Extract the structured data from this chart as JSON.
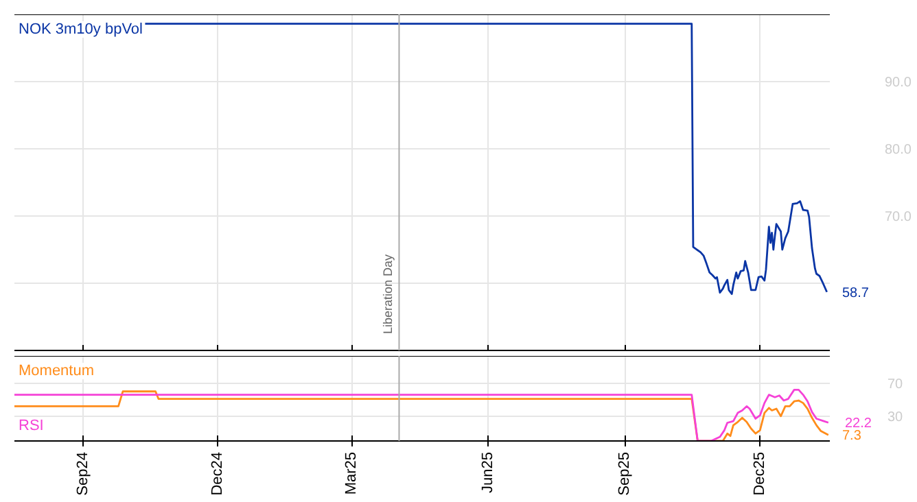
{
  "chart_data": [
    {
      "type": "line",
      "xlim": [
        "2024-07-17",
        "2026-01-17"
      ],
      "ylim": [
        50,
        100
      ],
      "xticks": [
        {
          "value": "2024-09-01",
          "label": null
        },
        {
          "value": "2024-12-01",
          "label": null
        },
        {
          "value": "2025-03-01",
          "label": null
        },
        {
          "value": "2025-06-01",
          "label": null
        },
        {
          "value": "2025-09-01",
          "label": null
        },
        {
          "value": "2025-12-01",
          "label": null
        }
      ],
      "yticks": [
        {
          "value": 60,
          "label": null
        },
        {
          "value": 70,
          "label": "70.0"
        },
        {
          "value": 80,
          "label": "80.0"
        },
        {
          "value": 90,
          "label": "90.0"
        }
      ],
      "tick_labels": "y",
      "grid": true,
      "ref_lines": [
        {
          "axis": "x",
          "value": "2025-04-02",
          "label": "Liberation Day",
          "color": "#aaaaaa"
        }
      ],
      "series": [
        {
          "name": "NOK 3m10y bpVol",
          "color": "#0a35a5",
          "x": [
            "2024-10-13",
            "2025-10-16",
            "2025-10-17",
            "2025-10-22",
            "2025-10-24",
            "2025-10-26",
            "2025-10-28",
            "2025-10-30",
            "2025-11-01",
            "2025-11-02",
            "2025-11-04",
            "2025-11-06",
            "2025-11-07",
            "2025-11-09",
            "2025-11-10",
            "2025-11-12",
            "2025-11-13",
            "2025-11-15",
            "2025-11-16",
            "2025-11-18",
            "2025-11-20",
            "2025-11-21",
            "2025-11-23",
            "2025-11-25",
            "2025-11-28",
            "2025-11-30",
            "2025-12-02",
            "2025-12-04",
            "2025-12-05",
            "2025-12-07",
            "2025-12-08",
            "2025-12-09",
            "2025-12-10",
            "2025-12-11",
            "2025-12-12",
            "2025-12-15",
            "2025-12-16",
            "2025-12-18",
            "2025-12-20",
            "2025-12-23",
            "2025-12-26",
            "2025-12-28",
            "2025-12-30",
            "2026-01-02",
            "2026-01-03",
            "2026-01-05",
            "2026-01-07",
            "2026-01-08",
            "2026-01-10",
            "2026-01-12",
            "2026-01-15"
          ],
          "values": [
            98.6,
            98.6,
            65.4,
            64.6,
            64.1,
            62.9,
            61.6,
            61.2,
            60.7,
            60.9,
            58.6,
            59.2,
            59.7,
            60.5,
            59.0,
            58.4,
            59.7,
            61.6,
            60.7,
            61.8,
            61.9,
            63.3,
            61.6,
            59.0,
            59.0,
            60.9,
            61.0,
            60.4,
            62.0,
            68.4,
            66.0,
            67.5,
            65.0,
            67.0,
            68.8,
            67.7,
            65.0,
            66.7,
            67.7,
            71.8,
            71.9,
            72.2,
            70.9,
            70.8,
            69.9,
            65.2,
            62.2,
            61.4,
            61.1,
            60.2,
            58.7
          ],
          "value_labels": [
            null,
            null,
            null,
            null,
            null,
            null,
            null,
            null,
            null,
            null,
            null,
            null,
            null,
            null,
            null,
            null,
            null,
            null,
            null,
            null,
            null,
            null,
            null,
            null,
            null,
            null,
            null,
            null,
            null,
            null,
            null,
            null,
            null,
            null,
            null,
            null,
            null,
            null,
            null,
            null,
            null,
            null,
            null,
            null,
            null,
            null,
            null,
            null,
            null,
            null,
            "58.7"
          ]
        }
      ]
    },
    {
      "type": "line",
      "xlim": [
        "2024-07-17",
        "2026-01-17"
      ],
      "ylim": [
        0,
        103
      ],
      "xticks": [
        {
          "value": "2024-09-01",
          "label": "Sep24"
        },
        {
          "value": "2024-12-01",
          "label": "Dec24"
        },
        {
          "value": "2025-03-01",
          "label": "Mar25"
        },
        {
          "value": "2025-06-01",
          "label": "Jun25"
        },
        {
          "value": "2025-09-01",
          "label": "Sep25"
        },
        {
          "value": "2025-12-01",
          "label": "Dec25"
        }
      ],
      "yticks": [
        30,
        70
      ],
      "grid": true,
      "ref_lines": [
        {
          "axis": "x",
          "value": "2025-04-02",
          "label": null,
          "color": "#aaaaaa"
        }
      ],
      "series": [
        {
          "name": "Momentum",
          "color": "#ff8c1a",
          "x": [
            "2024-07-17",
            "2024-09-25",
            "2024-09-28",
            "2024-10-20",
            "2024-10-22",
            "2025-10-16",
            "2025-10-20",
            "2025-11-06",
            "2025-11-09",
            "2025-11-11",
            "2025-11-13",
            "2025-11-16",
            "2025-11-19",
            "2025-11-22",
            "2025-11-25",
            "2025-11-28",
            "2025-12-01",
            "2025-12-04",
            "2025-12-07",
            "2025-12-09",
            "2025-12-12",
            "2025-12-15",
            "2025-12-18",
            "2025-12-21",
            "2025-12-24",
            "2025-12-27",
            "2025-12-30",
            "2026-01-02",
            "2026-01-05",
            "2026-01-08",
            "2026-01-11",
            "2026-01-16"
          ],
          "values": [
            42,
            42,
            60,
            60,
            51,
            51,
            0,
            0,
            9,
            6,
            19,
            23,
            28,
            23,
            15,
            9,
            13,
            34,
            40,
            37,
            39,
            30,
            42,
            42,
            48,
            49,
            46,
            39,
            28,
            19,
            12,
            7.3
          ],
          "value_labels": [
            null,
            null,
            null,
            null,
            null,
            null,
            null,
            null,
            null,
            null,
            null,
            null,
            null,
            null,
            null,
            null,
            null,
            null,
            null,
            null,
            null,
            null,
            null,
            null,
            null,
            null,
            null,
            null,
            null,
            null,
            null,
            "7.3"
          ]
        },
        {
          "name": "RSI",
          "color": "#f542d7",
          "x": [
            "2024-07-17",
            "2025-10-16",
            "2025-10-20",
            "2025-10-29",
            "2025-11-04",
            "2025-11-07",
            "2025-11-09",
            "2025-11-13",
            "2025-11-16",
            "2025-11-19",
            "2025-11-22",
            "2025-11-24",
            "2025-11-28",
            "2025-12-01",
            "2025-12-04",
            "2025-12-07",
            "2025-12-11",
            "2025-12-14",
            "2025-12-17",
            "2025-12-20",
            "2025-12-24",
            "2025-12-27",
            "2025-12-30",
            "2026-01-02",
            "2026-01-05",
            "2026-01-08",
            "2026-01-13",
            "2026-01-16"
          ],
          "values": [
            56,
            56,
            0,
            0,
            5,
            13,
            22,
            24,
            34,
            37,
            42,
            39,
            27,
            31,
            46,
            56,
            53,
            55,
            49,
            51,
            62,
            62,
            56,
            48,
            35,
            27,
            24,
            22.2
          ],
          "value_labels": [
            null,
            null,
            null,
            null,
            null,
            null,
            null,
            null,
            null,
            null,
            null,
            null,
            null,
            null,
            null,
            null,
            null,
            null,
            null,
            null,
            null,
            null,
            null,
            null,
            null,
            null,
            null,
            "22.2"
          ]
        }
      ]
    }
  ]
}
